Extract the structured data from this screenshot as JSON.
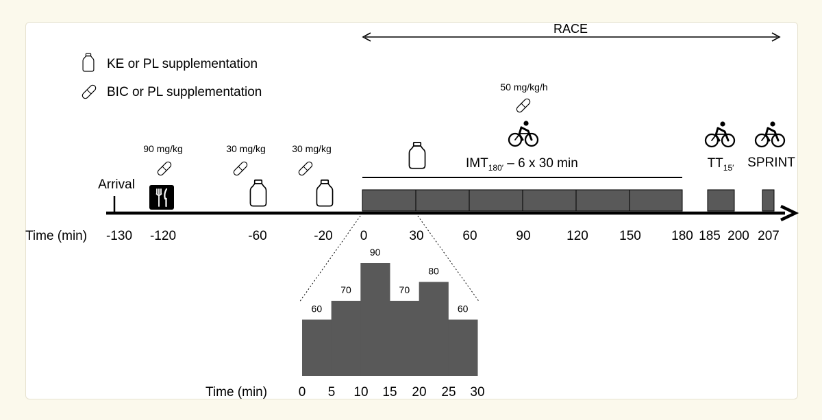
{
  "race_label": "RACE",
  "legend": {
    "ke_label": "KE or PL supplementation",
    "bic_label": "BIC or PL supplementation"
  },
  "doses": {
    "d_neg120": "90 mg/kg",
    "d_neg60": "30 mg/kg",
    "d_neg20": "30 mg/kg",
    "d_race": "50 mg/kg/h"
  },
  "arrival_label": "Arrival",
  "imt": {
    "prefix": "IMT",
    "sub": "180′",
    "suffix": " – 6 x 30 min"
  },
  "tt": {
    "prefix": "TT",
    "sub": "15′"
  },
  "sprint_label": "SPRINT",
  "time_axis_label": "Time (min)",
  "time_ticks": [
    "-130",
    "-120",
    "-60",
    "-20",
    "0",
    "30",
    "60",
    "90",
    "120",
    "150",
    "180",
    "185",
    "200",
    "207"
  ],
  "profile": {
    "time_label": "Time (min)",
    "ticks": [
      "0",
      "5",
      "10",
      "15",
      "20",
      "25",
      "30"
    ],
    "levels": [
      {
        "label": "60",
        "value": 60
      },
      {
        "label": "70",
        "value": 70
      },
      {
        "label": "90",
        "value": 90
      },
      {
        "label": "70",
        "value": 70
      },
      {
        "label": "80",
        "value": 80
      },
      {
        "label": "60",
        "value": 60
      }
    ]
  },
  "colors": {
    "block": "#595959",
    "line": "#000000",
    "background": "#fbf9ec",
    "panel": "#ffffff"
  },
  "icons": [
    "bottle-icon",
    "pill-icon",
    "fork-knife-icon",
    "cyclist-icon"
  ]
}
